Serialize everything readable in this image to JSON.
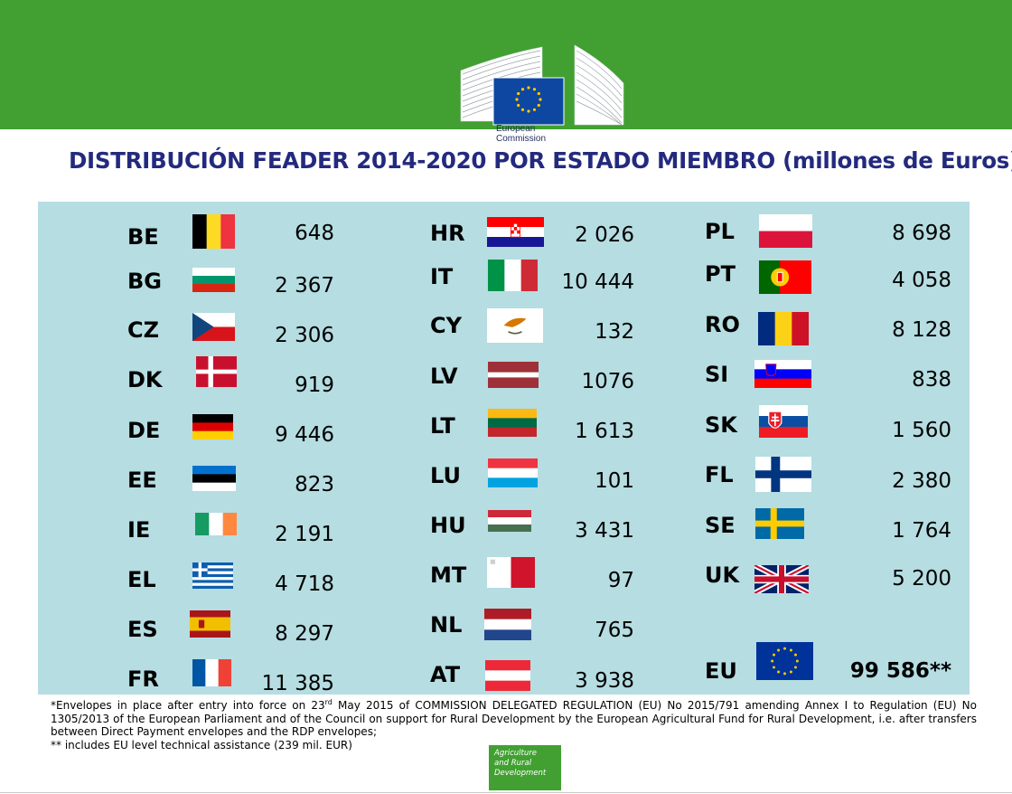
{
  "logo": {
    "text": "European Commission"
  },
  "title": "DISTRIBUCIÓN FEADER 2014-2020 POR ESTADO MIEMBRO (millones de Euros)",
  "countries": [
    {
      "code": "BE",
      "value": "648",
      "flag": "belgium-flag"
    },
    {
      "code": "BG",
      "value": "2 367",
      "flag": "bulgaria-flag"
    },
    {
      "code": "CZ",
      "value": "2 306",
      "flag": "czech-flag"
    },
    {
      "code": "DK",
      "value": "919",
      "flag": "denmark-flag"
    },
    {
      "code": "DE",
      "value": "9 446",
      "flag": "germany-flag"
    },
    {
      "code": "EE",
      "value": "823",
      "flag": "estonia-flag"
    },
    {
      "code": "IE",
      "value": "2 191",
      "flag": "ireland-flag"
    },
    {
      "code": "EL",
      "value": "4 718",
      "flag": "greece-flag"
    },
    {
      "code": "ES",
      "value": "8 297",
      "flag": "spain-flag"
    },
    {
      "code": "FR",
      "value": "11 385",
      "flag": "france-flag"
    },
    {
      "code": "HR",
      "value": "2 026",
      "flag": "croatia-flag"
    },
    {
      "code": "IT",
      "value": "10 444",
      "flag": "italy-flag"
    },
    {
      "code": "CY",
      "value": "132",
      "flag": "cyprus-flag"
    },
    {
      "code": "LV",
      "value": "1076",
      "flag": "latvia-flag"
    },
    {
      "code": "LT",
      "value": "1 613",
      "flag": "lithuania-flag"
    },
    {
      "code": "LU",
      "value": "101",
      "flag": "luxembourg-flag"
    },
    {
      "code": "HU",
      "value": "3 431",
      "flag": "hungary-flag"
    },
    {
      "code": "MT",
      "value": "97",
      "flag": "malta-flag"
    },
    {
      "code": "NL",
      "value": "765",
      "flag": "netherlands-flag"
    },
    {
      "code": "AT",
      "value": "3 938",
      "flag": "austria-flag"
    },
    {
      "code": "PL",
      "value": "8 698",
      "flag": "poland-flag"
    },
    {
      "code": "PT",
      "value": "4 058",
      "flag": "portugal-flag"
    },
    {
      "code": "RO",
      "value": "8 128",
      "flag": "romania-flag"
    },
    {
      "code": "SI",
      "value": "838",
      "flag": "slovenia-flag"
    },
    {
      "code": "SK",
      "value": "1 560",
      "flag": "slovakia-flag"
    },
    {
      "code": "FL",
      "value": "2 380",
      "flag": "finland-flag"
    },
    {
      "code": "SE",
      "value": "1 764",
      "flag": "sweden-flag"
    },
    {
      "code": "UK",
      "value": "5 200",
      "flag": "uk-flag"
    }
  ],
  "total": {
    "code": "EU",
    "value": "99 586**",
    "flag": "eu-flag"
  },
  "footnote": {
    "line1_pre": "*Envelopes in place after entry into force on 23",
    "line1_sup": "rd",
    "line1_post": " May 2015 of COMMISSION DELEGATED REGULATION (EU) No 2015/791 amending Annex I to Regulation (EU) No 1305/2013 of the European Parliament and of the Council on support for Rural Development by the European Agricultural Fund for Rural Development, i.e. after  transfers between Direct Payment envelopes and the RDP envelopes;",
    "line2": "** includes EU level technical assistance (239 mil. EUR)"
  },
  "agri_logo": {
    "text": "Agriculture\nand Rural\nDevelopment"
  },
  "colors": {
    "header_green": "#41a031",
    "panel": "#b5dde2",
    "title": "#232a7e",
    "eu_blue": "#003399",
    "eu_gold": "#ffcc00"
  }
}
